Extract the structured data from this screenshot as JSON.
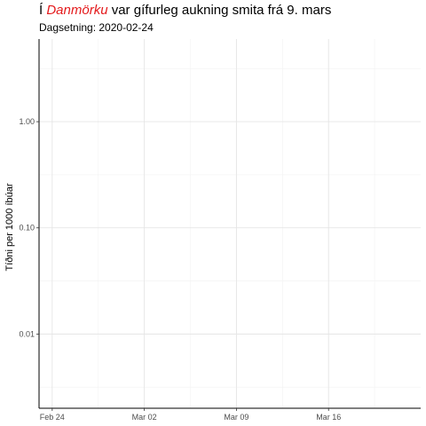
{
  "chart_data": {
    "type": "line",
    "title": {
      "prefix": "Í",
      "highlight": "Danmörku",
      "suffix": "var gífurleg aukning smita frá 9. mars"
    },
    "subtitle": "Dagsetning: 2020-02-24",
    "ylabel": "Tíðni per 1000 íbúar",
    "xlabel": "",
    "y_scale": "log",
    "ylim": [
      0.002,
      6
    ],
    "xlim": [
      "2020-02-23",
      "2020-03-23"
    ],
    "y_ticks": [
      {
        "value": 1.0,
        "label": "1.00"
      },
      {
        "value": 0.1,
        "label": "0.10"
      },
      {
        "value": 0.01,
        "label": "0.01"
      }
    ],
    "x_ticks": [
      {
        "date": "2020-02-24",
        "label": "Feb 24"
      },
      {
        "date": "2020-03-02",
        "label": "Mar 02"
      },
      {
        "date": "2020-03-09",
        "label": "Mar 09"
      },
      {
        "date": "2020-03-16",
        "label": "Mar 16"
      }
    ],
    "series": [],
    "grid": true,
    "highlight_color": "#e41a1c"
  }
}
